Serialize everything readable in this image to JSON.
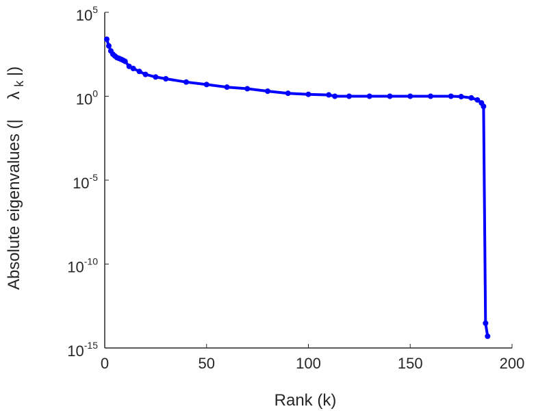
{
  "chart_data": {
    "type": "line",
    "title": "",
    "xlabel": "Rank (k)",
    "ylabel": {
      "main": "Absolute eigenvalues (|",
      "symbol": "λ",
      "subscript": "k",
      "suffix": "|)"
    },
    "xlim": [
      0,
      200
    ],
    "ylim_log10": [
      -15,
      5
    ],
    "y_scale": "log",
    "grid": false,
    "legend": "none",
    "line_color": "#0000ff",
    "x_ticks": [
      0,
      50,
      100,
      150,
      200
    ],
    "x_tick_labels": [
      "0",
      "50",
      "100",
      "150",
      "200"
    ],
    "y_ticks": [
      {
        "base": "10",
        "exp": "5"
      },
      {
        "base": "10",
        "exp": "0"
      },
      {
        "base": "10",
        "exp": "-5"
      },
      {
        "base": "10",
        "exp": "-10"
      },
      {
        "base": "10",
        "exp": "-15"
      }
    ],
    "series": [
      {
        "x": [
          1,
          2,
          3,
          4,
          5,
          6,
          7,
          8,
          9,
          10,
          12,
          14,
          17,
          20,
          25,
          30,
          40,
          50,
          60,
          70,
          80,
          90,
          100,
          110,
          113,
          120,
          130,
          140,
          150,
          160,
          170,
          175,
          180,
          183,
          185,
          186,
          187,
          188
        ],
        "y": [
          2500,
          1000,
          500,
          320,
          250,
          200,
          180,
          160,
          140,
          120,
          60,
          45,
          30,
          20,
          14,
          11,
          7,
          5,
          3.5,
          2.8,
          2,
          1.5,
          1.3,
          1.2,
          1.0,
          1.0,
          1.0,
          1.0,
          1.0,
          1.0,
          1.0,
          0.95,
          0.8,
          0.6,
          0.4,
          0.25,
          3e-14,
          5e-15
        ]
      }
    ]
  }
}
